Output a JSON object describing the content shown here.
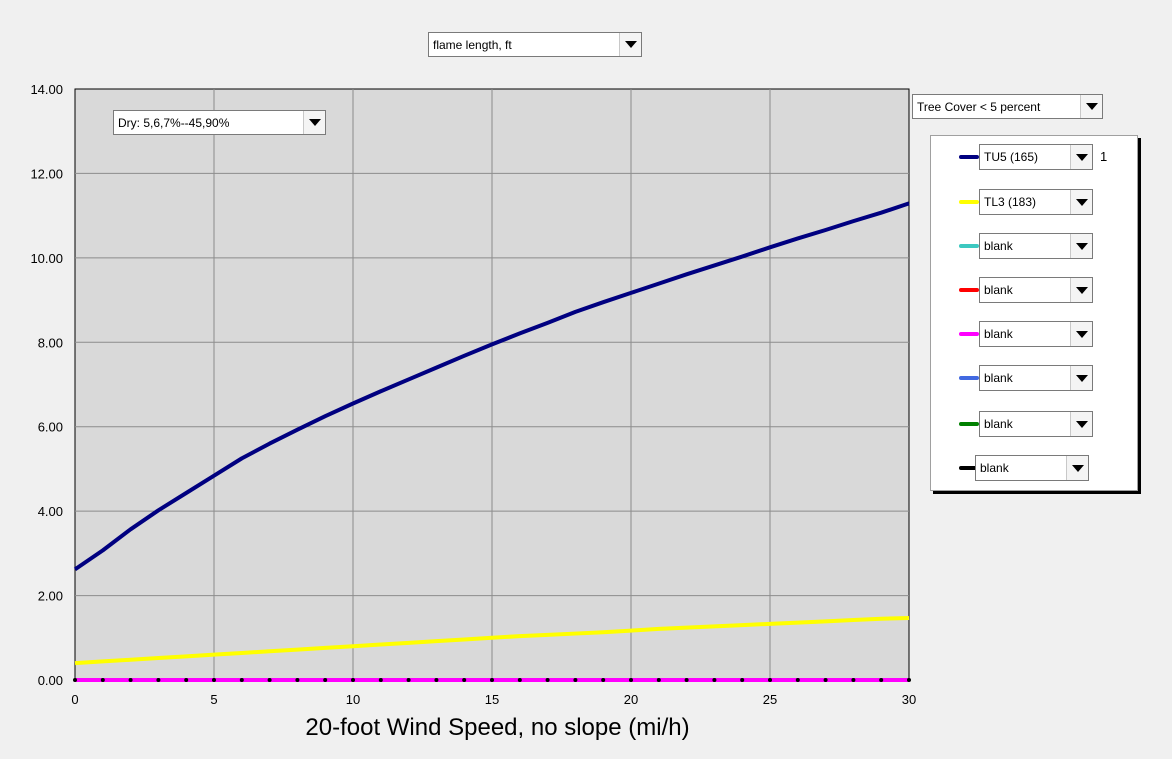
{
  "metric_select": {
    "value": "flame length, ft"
  },
  "moisture_select": {
    "value": "Dry: 5,6,7%--45,90%"
  },
  "canopy_select": {
    "value": "Tree Cover < 5 percent"
  },
  "legend": [
    {
      "label": "TU5 (165)",
      "color": "#000080",
      "count": "1"
    },
    {
      "label": "TL3 (183)",
      "color": "#ffff00",
      "count": ""
    },
    {
      "label": "blank",
      "color": "#3cc8c0",
      "count": ""
    },
    {
      "label": "blank",
      "color": "#ff0000",
      "count": ""
    },
    {
      "label": "blank",
      "color": "#ff00ff",
      "count": ""
    },
    {
      "label": "blank",
      "color": "#4169e1",
      "count": ""
    },
    {
      "label": "blank",
      "color": "#008000",
      "count": ""
    },
    {
      "label": "blank",
      "color": "#000000",
      "count": ""
    }
  ],
  "chart_data": {
    "type": "line",
    "title": "",
    "xlabel": "20-foot Wind Speed, no slope (mi/h)",
    "ylabel": "",
    "xlim": [
      0,
      30
    ],
    "ylim": [
      0,
      14
    ],
    "xticks": [
      0,
      5,
      10,
      15,
      20,
      25,
      30
    ],
    "yticks": [
      "0.00",
      "2.00",
      "4.00",
      "6.00",
      "8.00",
      "10.00",
      "12.00",
      "14.00"
    ],
    "grid": true,
    "x": [
      0,
      1,
      2,
      3,
      4,
      5,
      6,
      7,
      8,
      9,
      10,
      11,
      12,
      13,
      14,
      15,
      16,
      17,
      18,
      19,
      20,
      21,
      22,
      23,
      24,
      25,
      26,
      27,
      28,
      29,
      30
    ],
    "series": [
      {
        "name": "TU5 (165)",
        "color": "#000080",
        "values": [
          2.62,
          3.07,
          3.57,
          4.02,
          4.43,
          4.84,
          5.25,
          5.6,
          5.93,
          6.25,
          6.55,
          6.84,
          7.12,
          7.4,
          7.68,
          7.95,
          8.21,
          8.46,
          8.72,
          8.95,
          9.17,
          9.39,
          9.61,
          9.82,
          10.03,
          10.25,
          10.46,
          10.66,
          10.87,
          11.07,
          11.29
        ]
      },
      {
        "name": "TL3 (183)",
        "color": "#ffff00",
        "values": [
          0.4,
          0.44,
          0.48,
          0.52,
          0.56,
          0.6,
          0.64,
          0.68,
          0.72,
          0.76,
          0.8,
          0.84,
          0.88,
          0.92,
          0.96,
          1.0,
          1.04,
          1.07,
          1.1,
          1.13,
          1.17,
          1.21,
          1.24,
          1.27,
          1.3,
          1.33,
          1.36,
          1.39,
          1.42,
          1.45,
          1.47
        ]
      },
      {
        "name": "blank",
        "color": "#ff00ff",
        "values": [
          0,
          0,
          0,
          0,
          0,
          0,
          0,
          0,
          0,
          0,
          0,
          0,
          0,
          0,
          0,
          0,
          0,
          0,
          0,
          0,
          0,
          0,
          0,
          0,
          0,
          0,
          0,
          0,
          0,
          0,
          0
        ]
      }
    ]
  }
}
